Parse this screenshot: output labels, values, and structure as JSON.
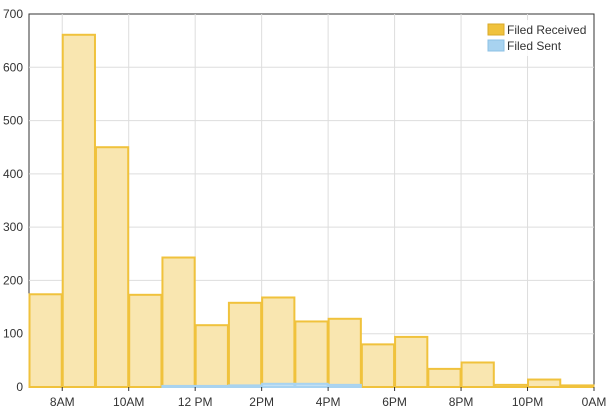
{
  "chart_data": {
    "type": "bar",
    "bins_start_hour": [
      7,
      8,
      9,
      10,
      11,
      12,
      13,
      14,
      15,
      16,
      17,
      18,
      19,
      20,
      21,
      22,
      23
    ],
    "series": [
      {
        "name": "Filed Received",
        "color": "#f0c23c",
        "fill": "#f9e6b0",
        "values": [
          174,
          661,
          450,
          173,
          243,
          116,
          158,
          168,
          123,
          128,
          80,
          94,
          34,
          46,
          4,
          14,
          3
        ]
      },
      {
        "name": "Filed Sent",
        "color": "#a8d3f0",
        "fill": "#c3e0f4",
        "values": [
          0,
          0,
          0,
          0,
          2,
          2,
          3,
          6,
          6,
          4,
          0,
          0,
          0,
          0,
          0,
          0,
          0
        ]
      }
    ],
    "x_tick_labels": [
      "8AM",
      "10AM",
      "12 PM",
      "2PM",
      "4PM",
      "6PM",
      "8PM",
      "10PM",
      "0AM"
    ],
    "y_ticks": [
      0,
      100,
      200,
      300,
      400,
      500,
      600,
      700
    ],
    "ylim": [
      0,
      700
    ],
    "grid": true,
    "legend_position": "top-right"
  }
}
